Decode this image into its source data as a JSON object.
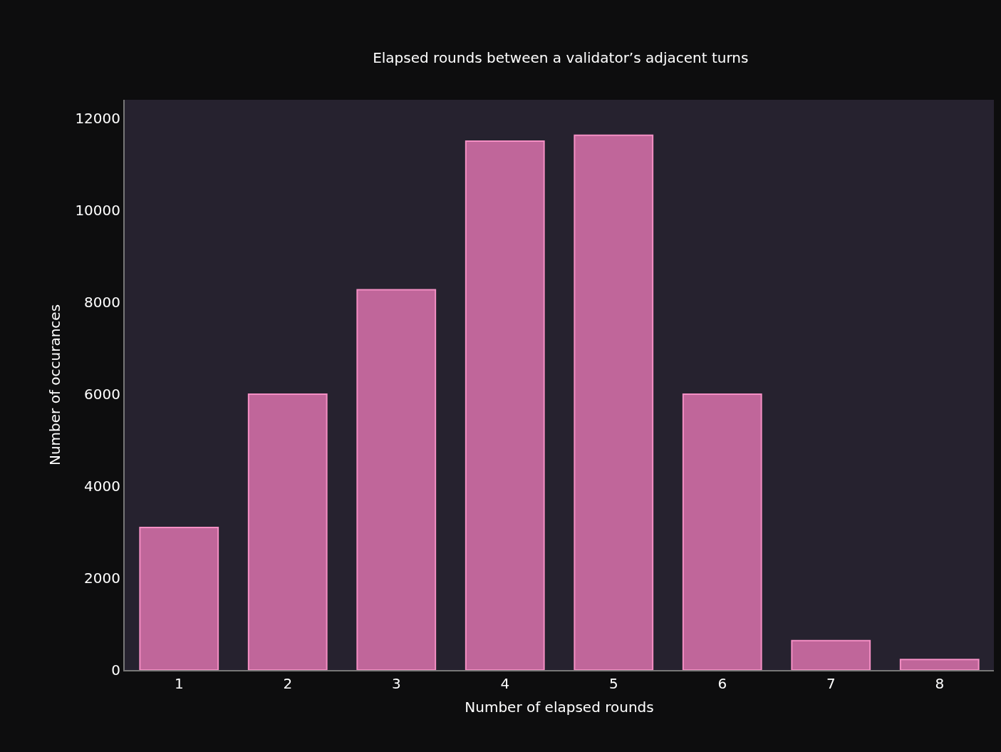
{
  "chart_data": {
    "type": "bar",
    "title": "Elapsed rounds between a validator’s adjacent turns",
    "xlabel": "Number of elapsed rounds",
    "ylabel": "Number of occurances",
    "categories": [
      "1",
      "2",
      "3",
      "4",
      "5",
      "6",
      "7",
      "8"
    ],
    "values": [
      3100,
      6000,
      8270,
      11500,
      11630,
      6000,
      640,
      230
    ],
    "color": "#c0669a",
    "ylim": [
      0,
      12400
    ],
    "yticks": [
      0,
      2000,
      4000,
      6000,
      8000,
      10000,
      12000
    ],
    "grid": false,
    "legend": false
  }
}
